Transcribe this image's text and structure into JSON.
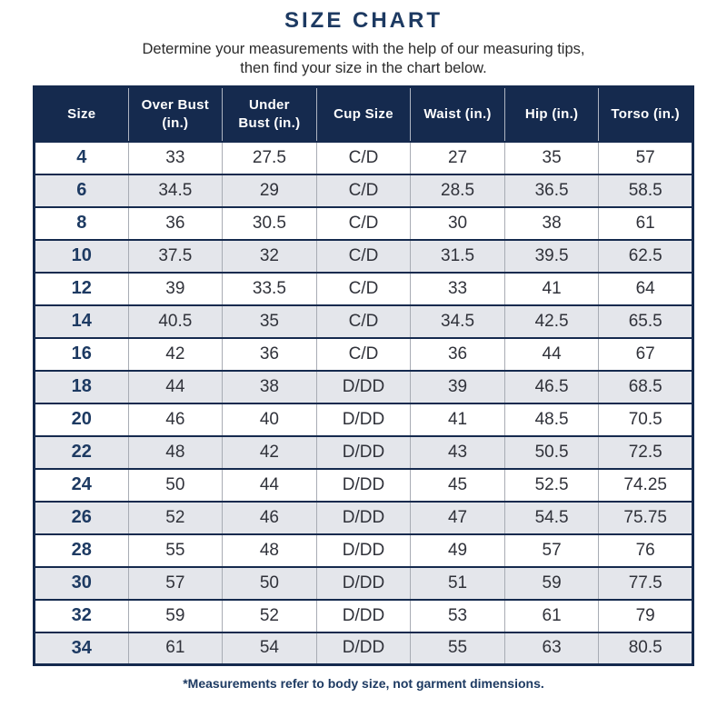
{
  "header": {
    "title": "SIZE CHART",
    "subtitle_line1": "Determine your measurements with the help of our measuring tips,",
    "subtitle_line2": "then find your size in the chart below."
  },
  "footnote": "*Measurements refer to body size, not garment dimensions.",
  "colors": {
    "navy": "#152a4e",
    "accent_navy": "#1d3a62",
    "alt_row": "#e4e6eb",
    "cell_text": "#30323a",
    "divider_gray": "#a8acb4"
  },
  "chart_data": {
    "type": "table",
    "title": "SIZE CHART",
    "columns": [
      "Size",
      "Over Bust (in.)",
      "Under Bust (in.)",
      "Cup Size",
      "Waist (in.)",
      "Hip (in.)",
      "Torso (in.)"
    ],
    "rows": [
      [
        "4",
        "33",
        "27.5",
        "C/D",
        "27",
        "35",
        "57"
      ],
      [
        "6",
        "34.5",
        "29",
        "C/D",
        "28.5",
        "36.5",
        "58.5"
      ],
      [
        "8",
        "36",
        "30.5",
        "C/D",
        "30",
        "38",
        "61"
      ],
      [
        "10",
        "37.5",
        "32",
        "C/D",
        "31.5",
        "39.5",
        "62.5"
      ],
      [
        "12",
        "39",
        "33.5",
        "C/D",
        "33",
        "41",
        "64"
      ],
      [
        "14",
        "40.5",
        "35",
        "C/D",
        "34.5",
        "42.5",
        "65.5"
      ],
      [
        "16",
        "42",
        "36",
        "C/D",
        "36",
        "44",
        "67"
      ],
      [
        "18",
        "44",
        "38",
        "D/DD",
        "39",
        "46.5",
        "68.5"
      ],
      [
        "20",
        "46",
        "40",
        "D/DD",
        "41",
        "48.5",
        "70.5"
      ],
      [
        "22",
        "48",
        "42",
        "D/DD",
        "43",
        "50.5",
        "72.5"
      ],
      [
        "24",
        "50",
        "44",
        "D/DD",
        "45",
        "52.5",
        "74.25"
      ],
      [
        "26",
        "52",
        "46",
        "D/DD",
        "47",
        "54.5",
        "75.75"
      ],
      [
        "28",
        "55",
        "48",
        "D/DD",
        "49",
        "57",
        "76"
      ],
      [
        "30",
        "57",
        "50",
        "D/DD",
        "51",
        "59",
        "77.5"
      ],
      [
        "32",
        "59",
        "52",
        "D/DD",
        "53",
        "61",
        "79"
      ],
      [
        "34",
        "61",
        "54",
        "D/DD",
        "55",
        "63",
        "80.5"
      ]
    ]
  }
}
